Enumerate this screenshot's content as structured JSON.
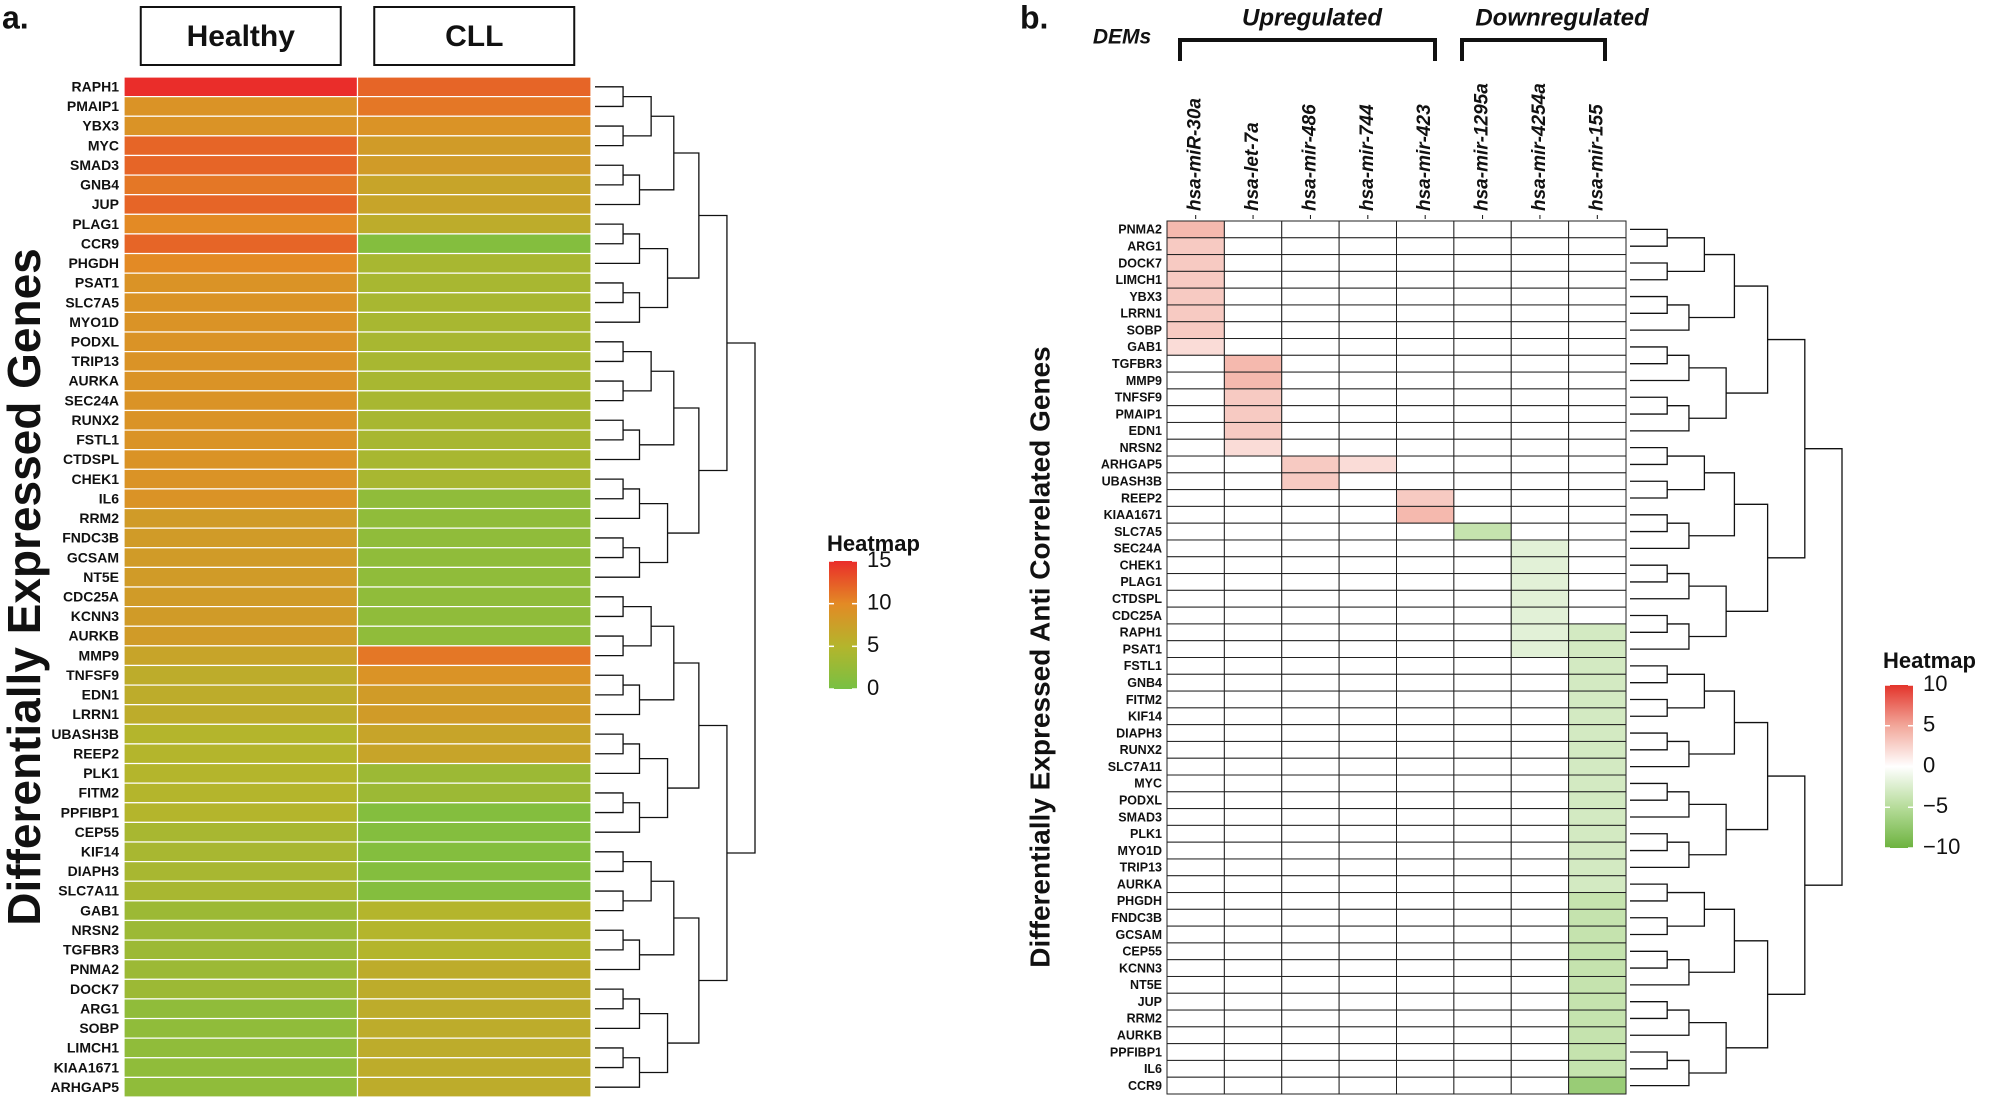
{
  "chart_data": [
    {
      "type": "heatmap",
      "panel_label": "a.",
      "y_label": "Differentially Expressed Genes",
      "legend_title": "Heatmap",
      "columns": [
        "Healthy",
        "CLL"
      ],
      "categories": [
        "RAPH1",
        "PMAIP1",
        "YBX3",
        "MYC",
        "SMAD3",
        "GNB4",
        "JUP",
        "PLAG1",
        "CCR9",
        "PHGDH",
        "PSAT1",
        "SLC7A5",
        "MYO1D",
        "PODXL",
        "TRIP13",
        "AURKA",
        "SEC24A",
        "RUNX2",
        "FSTL1",
        "CTDSPL",
        "CHEK1",
        "IL6",
        "RRM2",
        "FNDC3B",
        "GCSAM",
        "NT5E",
        "CDC25A",
        "KCNN3",
        "AURKB",
        "MMP9",
        "TNFSF9",
        "EDN1",
        "LRRN1",
        "UBASH3B",
        "REEP2",
        "PLK1",
        "FITM2",
        "PPFIBP1",
        "CEP55",
        "KIF14",
        "DIAPH3",
        "SLC7A11",
        "GAB1",
        "NRSN2",
        "TGFBR3",
        "PNMA2",
        "DOCK7",
        "ARG1",
        "SOBP",
        "LIMCH1",
        "KIAA1671",
        "ARHGAP5"
      ],
      "values": [
        [
          15,
          12
        ],
        [
          9,
          11
        ],
        [
          9,
          9
        ],
        [
          12,
          8
        ],
        [
          12,
          8
        ],
        [
          11,
          7
        ],
        [
          12,
          7
        ],
        [
          10,
          6
        ],
        [
          12,
          1
        ],
        [
          10,
          4
        ],
        [
          9,
          4
        ],
        [
          9,
          4
        ],
        [
          9,
          4
        ],
        [
          9,
          4
        ],
        [
          9,
          4
        ],
        [
          9,
          4
        ],
        [
          9,
          4
        ],
        [
          9,
          4
        ],
        [
          9,
          4
        ],
        [
          9,
          4
        ],
        [
          9,
          4
        ],
        [
          9,
          2
        ],
        [
          8,
          2
        ],
        [
          8,
          2
        ],
        [
          8,
          2
        ],
        [
          8,
          2
        ],
        [
          8,
          2
        ],
        [
          8,
          2
        ],
        [
          8,
          2
        ],
        [
          7,
          11
        ],
        [
          6,
          9
        ],
        [
          6,
          8
        ],
        [
          6,
          8
        ],
        [
          5,
          7
        ],
        [
          5,
          7
        ],
        [
          5,
          3
        ],
        [
          5,
          3
        ],
        [
          5,
          1
        ],
        [
          4,
          1
        ],
        [
          4,
          1
        ],
        [
          4,
          1
        ],
        [
          4,
          1
        ],
        [
          3,
          5
        ],
        [
          3,
          5
        ],
        [
          3,
          5
        ],
        [
          3,
          6
        ],
        [
          3,
          6
        ],
        [
          2,
          6
        ],
        [
          2,
          6
        ],
        [
          2,
          6
        ],
        [
          2,
          6
        ],
        [
          2,
          6
        ]
      ],
      "colorscale": [
        [
          0,
          "#78c043"
        ],
        [
          5,
          "#b4b52c"
        ],
        [
          10,
          "#e38a25"
        ],
        [
          15,
          "#ea2d2a"
        ]
      ],
      "legend_ticks": [
        0,
        5,
        10,
        15
      ]
    },
    {
      "type": "heatmap",
      "panel_label": "b.",
      "y_label": "Differentially Expressed Anti Correlated Genes",
      "legend_title": "Heatmap",
      "annotations": [
        "DEMs",
        "Upregulated",
        "Downregulated"
      ],
      "columns": [
        "hsa-miR-30a",
        "hsa-let-7a",
        "hsa-mir-486",
        "hsa-mir-744",
        "hsa-mir-423",
        "hsa-mir-1295a",
        "hsa-mir-4254a",
        "hsa-mir-155"
      ],
      "categories": [
        "PNMA2",
        "ARG1",
        "DOCK7",
        "LIMCH1",
        "YBX3",
        "LRRN1",
        "SOBP",
        "GAB1",
        "TGFBR3",
        "MMP9",
        "TNFSF9",
        "PMAIP1",
        "EDN1",
        "NRSN2",
        "ARHGAP5",
        "UBASH3B",
        "REEP2",
        "KIAA1671",
        "SLC7A5",
        "SEC24A",
        "CHEK1",
        "PLAG1",
        "CTDSPL",
        "CDC25A",
        "RAPH1",
        "PSAT1",
        "FSTL1",
        "GNB4",
        "FITM2",
        "KIF14",
        "DIAPH3",
        "RUNX2",
        "SLC7A11",
        "MYC",
        "PODXL",
        "SMAD3",
        "PLK1",
        "MYO1D",
        "TRIP13",
        "AURKA",
        "PHGDH",
        "FNDC3B",
        "GCSAM",
        "CEP55",
        "KCNN3",
        "NT5E",
        "JUP",
        "RRM2",
        "AURKB",
        "PPFIBP1",
        "IL6",
        "CCR9"
      ],
      "values": [
        [
          4,
          0,
          0,
          0,
          0,
          0,
          0,
          0
        ],
        [
          3,
          0,
          0,
          0,
          0,
          0,
          0,
          0
        ],
        [
          3,
          0,
          0,
          0,
          0,
          0,
          0,
          0
        ],
        [
          3,
          0,
          0,
          0,
          0,
          0,
          0,
          0
        ],
        [
          3,
          0,
          0,
          0,
          0,
          0,
          0,
          0
        ],
        [
          3,
          0,
          0,
          0,
          0,
          0,
          0,
          0
        ],
        [
          3,
          0,
          0,
          0,
          0,
          0,
          0,
          0
        ],
        [
          2,
          0,
          0,
          0,
          0,
          0,
          0,
          0
        ],
        [
          0,
          4,
          0,
          0,
          0,
          0,
          0,
          0
        ],
        [
          0,
          4,
          0,
          0,
          0,
          0,
          0,
          0
        ],
        [
          0,
          3,
          0,
          0,
          0,
          0,
          0,
          0
        ],
        [
          0,
          3,
          0,
          0,
          0,
          0,
          0,
          0
        ],
        [
          0,
          3,
          0,
          0,
          0,
          0,
          0,
          0
        ],
        [
          0,
          2,
          0,
          0,
          0,
          0,
          0,
          0
        ],
        [
          0,
          0,
          3,
          2,
          0,
          0,
          0,
          0
        ],
        [
          0,
          0,
          3,
          0,
          0,
          0,
          0,
          0
        ],
        [
          0,
          0,
          0,
          0,
          3,
          0,
          0,
          0
        ],
        [
          0,
          0,
          0,
          0,
          4,
          0,
          0,
          0
        ],
        [
          0,
          0,
          0,
          0,
          0,
          -4,
          0,
          0
        ],
        [
          0,
          0,
          0,
          0,
          0,
          0,
          -2,
          0
        ],
        [
          0,
          0,
          0,
          0,
          0,
          0,
          -2,
          0
        ],
        [
          0,
          0,
          0,
          0,
          0,
          0,
          -2,
          0
        ],
        [
          0,
          0,
          0,
          0,
          0,
          0,
          -2,
          0
        ],
        [
          0,
          0,
          0,
          0,
          0,
          0,
          -2,
          0
        ],
        [
          0,
          0,
          0,
          0,
          0,
          0,
          -2,
          -3
        ],
        [
          0,
          0,
          0,
          0,
          0,
          0,
          -2,
          -3
        ],
        [
          0,
          0,
          0,
          0,
          0,
          0,
          0,
          -3
        ],
        [
          0,
          0,
          0,
          0,
          0,
          0,
          0,
          -3
        ],
        [
          0,
          0,
          0,
          0,
          0,
          0,
          0,
          -3
        ],
        [
          0,
          0,
          0,
          0,
          0,
          0,
          0,
          -3
        ],
        [
          0,
          0,
          0,
          0,
          0,
          0,
          0,
          -3
        ],
        [
          0,
          0,
          0,
          0,
          0,
          0,
          0,
          -3
        ],
        [
          0,
          0,
          0,
          0,
          0,
          0,
          0,
          -3
        ],
        [
          0,
          0,
          0,
          0,
          0,
          0,
          0,
          -3
        ],
        [
          0,
          0,
          0,
          0,
          0,
          0,
          0,
          -3
        ],
        [
          0,
          0,
          0,
          0,
          0,
          0,
          0,
          -3
        ],
        [
          0,
          0,
          0,
          0,
          0,
          0,
          0,
          -3
        ],
        [
          0,
          0,
          0,
          0,
          0,
          0,
          0,
          -3
        ],
        [
          0,
          0,
          0,
          0,
          0,
          0,
          0,
          -3
        ],
        [
          0,
          0,
          0,
          0,
          0,
          0,
          0,
          -3
        ],
        [
          0,
          0,
          0,
          0,
          0,
          0,
          0,
          -4
        ],
        [
          0,
          0,
          0,
          0,
          0,
          0,
          0,
          -4
        ],
        [
          0,
          0,
          0,
          0,
          0,
          0,
          0,
          -4
        ],
        [
          0,
          0,
          0,
          0,
          0,
          0,
          0,
          -4
        ],
        [
          0,
          0,
          0,
          0,
          0,
          0,
          0,
          -4
        ],
        [
          0,
          0,
          0,
          0,
          0,
          0,
          0,
          -4
        ],
        [
          0,
          0,
          0,
          0,
          0,
          0,
          0,
          -4
        ],
        [
          0,
          0,
          0,
          0,
          0,
          0,
          0,
          -4
        ],
        [
          0,
          0,
          0,
          0,
          0,
          0,
          0,
          -4
        ],
        [
          0,
          0,
          0,
          0,
          0,
          0,
          0,
          -4
        ],
        [
          0,
          0,
          0,
          0,
          0,
          0,
          0,
          -4
        ],
        [
          0,
          0,
          0,
          0,
          0,
          0,
          0,
          -7
        ]
      ],
      "colorscale": [
        [
          -10,
          "#6db33f"
        ],
        [
          -5,
          "#b6dc9a"
        ],
        [
          0,
          "#ffffff"
        ],
        [
          5,
          "#f2a79a"
        ],
        [
          10,
          "#e3342b"
        ]
      ],
      "legend_ticks": [
        {
          "value": -10,
          "label": "−10"
        },
        {
          "value": -5,
          "label": "−5"
        },
        0,
        5,
        10
      ]
    }
  ]
}
